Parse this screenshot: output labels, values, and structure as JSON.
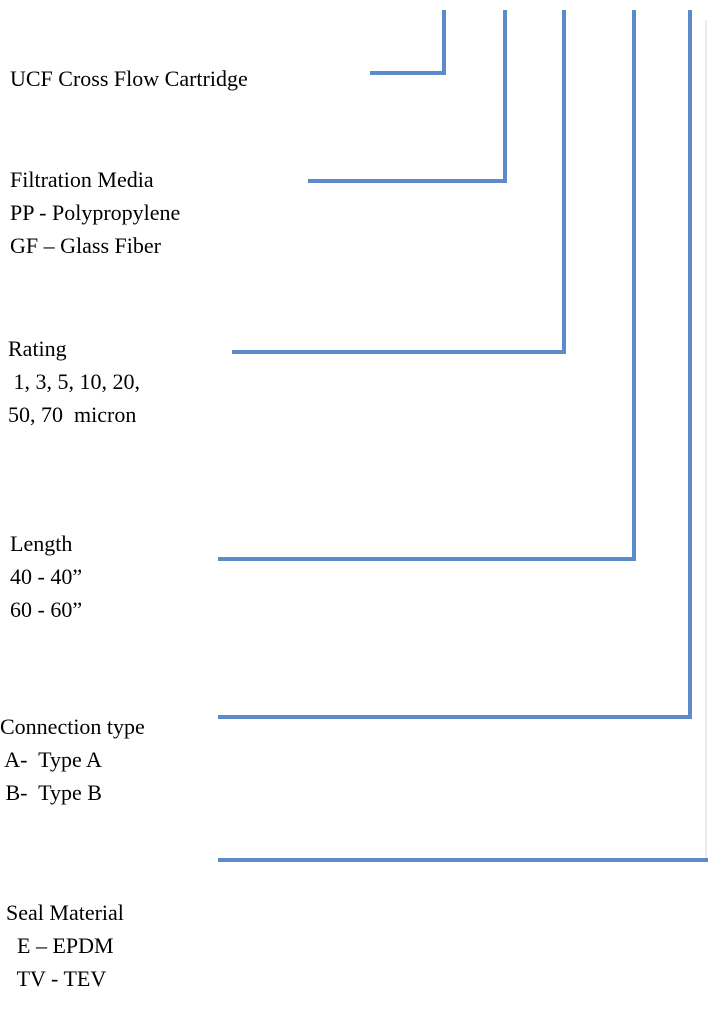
{
  "groups": [
    {
      "lines": [
        "UCF Cross Flow Cartridge"
      ]
    },
    {
      "lines": [
        "Filtration Media",
        "PP - Polypropylene",
        "GF – Glass Fiber"
      ]
    },
    {
      "lines": [
        "Rating",
        " 1, 3, 5, 10, 20,",
        "50, 70  micron"
      ]
    },
    {
      "lines": [
        "Length",
        "40 - 40”",
        "60 - 60”"
      ]
    },
    {
      "lines": [
        "Connection type",
        " A-  Type A",
        " B-  Type B"
      ]
    },
    {
      "lines": [
        "Seal Material",
        "  E – EPDM",
        "  TV - TEV"
      ]
    }
  ]
}
